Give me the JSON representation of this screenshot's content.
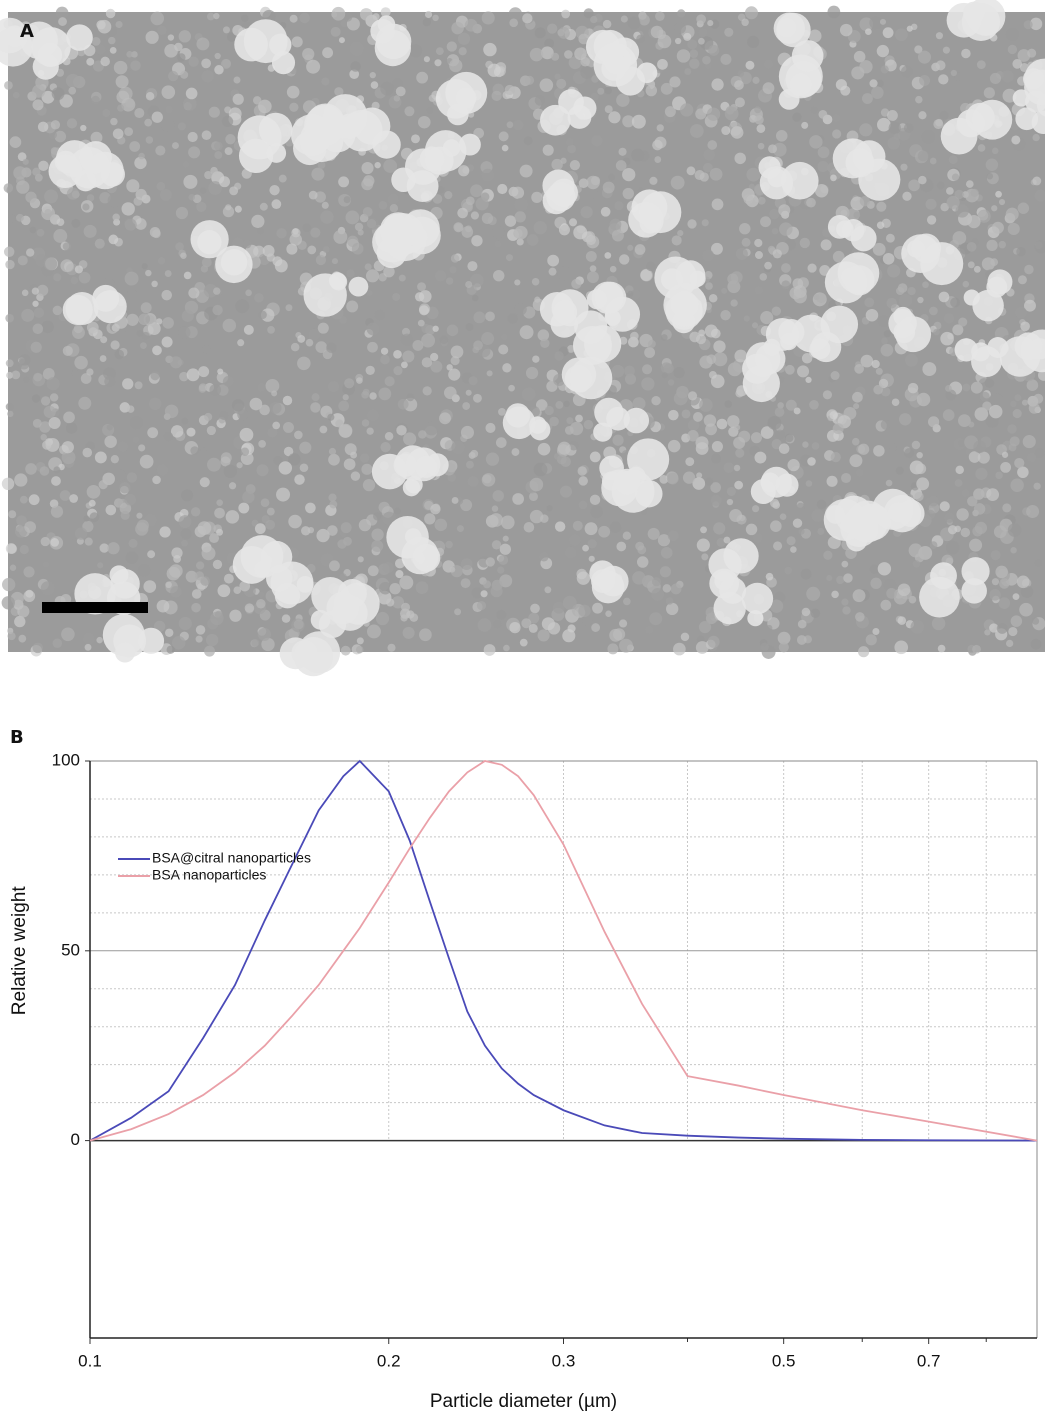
{
  "image_panel": {
    "label": "A"
  },
  "chart_data": {
    "type": "line",
    "label": "B",
    "xlabel": "Particle diameter (µm)",
    "ylabel": "Relative weight",
    "xscale": "log",
    "x": [
      0.1,
      0.11,
      0.12,
      0.13,
      0.14,
      0.15,
      0.16,
      0.17,
      0.18,
      0.187,
      0.2,
      0.21,
      0.22,
      0.23,
      0.24,
      0.25,
      0.26,
      0.27,
      0.28,
      0.3,
      0.33,
      0.36,
      0.4,
      0.45,
      0.5,
      0.6,
      0.7,
      0.9
    ],
    "series": [
      {
        "name": "BSA@citral nanoparticles",
        "color": "#4a4ab8",
        "values": [
          0,
          6,
          13,
          27,
          41,
          58,
          73,
          87,
          96,
          100,
          92,
          79,
          63,
          48,
          34,
          25,
          19,
          15,
          12,
          8,
          4,
          2,
          1.3,
          0.8,
          0.5,
          0.2,
          0.1,
          0
        ]
      },
      {
        "name": "BSA nanoparticles",
        "color": "#eaa0a8",
        "values": [
          0,
          3,
          7,
          12,
          18,
          25,
          33,
          41,
          50,
          56,
          68,
          77,
          85,
          92,
          97,
          100,
          99,
          96,
          91,
          78,
          55,
          36,
          17,
          14.5,
          12,
          8,
          5,
          0
        ]
      }
    ],
    "xlim": [
      0.1,
      0.9
    ],
    "xticks": [
      0.1,
      0.2,
      0.3,
      0.5,
      0.7
    ],
    "x_minor_ticks": [
      0.4,
      0.6,
      0.8
    ],
    "ylim": [
      -52,
      100
    ],
    "yticks": [
      0,
      50,
      100
    ],
    "y_minor_ticks": [
      10,
      20,
      30,
      40,
      60,
      70,
      80,
      90
    ],
    "grid": true,
    "legend": "upper left"
  }
}
